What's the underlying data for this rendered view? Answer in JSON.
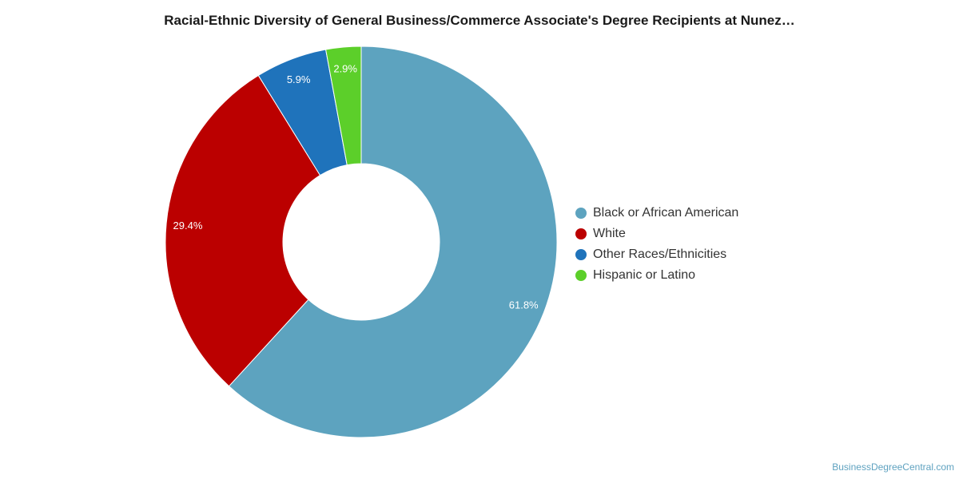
{
  "chart_data": {
    "type": "pie",
    "donut": true,
    "title": "Racial-Ethnic Diversity of General Business/Commerce Associate's Degree Recipients at Nunez…",
    "legend_position": "right",
    "slices": [
      {
        "label": "Black or African American",
        "value": 61.8,
        "value_label": "61.8%",
        "color": "#5da3bf"
      },
      {
        "label": "White",
        "value": 29.4,
        "value_label": "29.4%",
        "color": "#bb0000"
      },
      {
        "label": "Other Races/Ethnicities",
        "value": 5.9,
        "value_label": "5.9%",
        "color": "#1f73bb"
      },
      {
        "label": "Hispanic or Latino",
        "value": 2.9,
        "value_label": "2.9%",
        "color": "#5ccf2a"
      }
    ]
  },
  "footer": {
    "source": "BusinessDegreeCentral.com"
  }
}
